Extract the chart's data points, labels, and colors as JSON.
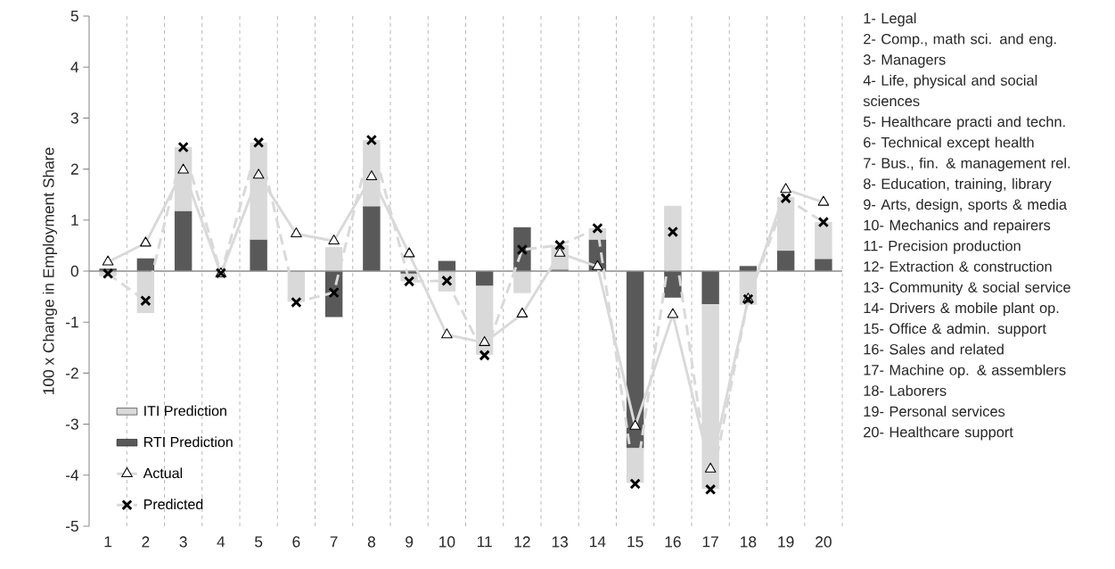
{
  "chart_data": {
    "type": "bar",
    "stacked": true,
    "ylabel": "100 x Change in Employment Share",
    "categories": [
      "1",
      "2",
      "3",
      "4",
      "5",
      "6",
      "7",
      "8",
      "9",
      "10",
      "11",
      "12",
      "13",
      "14",
      "15",
      "16",
      "17",
      "18",
      "19",
      "20"
    ],
    "series": [
      {
        "name": "RTI Prediction",
        "color": "#595959",
        "values": [
          0.05,
          0.25,
          1.18,
          0,
          0.62,
          0,
          -0.9,
          1.27,
          -0.05,
          0.2,
          -0.29,
          0.86,
          0.03,
          0.62,
          -3.47,
          -0.52,
          -0.65,
          0.1,
          0.4,
          0.24
        ]
      },
      {
        "name": "ITI Prediction",
        "color": "#d9d9d9",
        "values": [
          -0.1,
          -0.82,
          1.25,
          null,
          1.9,
          -0.6,
          0.47,
          1.3,
          -0.15,
          -0.4,
          -1.35,
          -0.43,
          0.48,
          0.22,
          -0.68,
          1.28,
          -3.62,
          -0.66,
          1.05,
          0.72
        ]
      },
      {
        "name": "Actual",
        "type": "line",
        "color": "#d9d9d9",
        "marker": "triangle",
        "line_style": "solid",
        "values": [
          0.18,
          0.55,
          1.98,
          -0.05,
          1.88,
          0.73,
          0.59,
          1.85,
          0.34,
          -1.25,
          -1.4,
          -0.84,
          0.35,
          0.09,
          -3.04,
          -0.85,
          -3.88,
          -0.55,
          1.6,
          1.35
        ]
      },
      {
        "name": "Predicted",
        "type": "line",
        "color": "#d9d9d9",
        "marker": "cross",
        "line_style": "dashed",
        "values": [
          -0.05,
          -0.58,
          2.43,
          -0.04,
          2.52,
          -0.61,
          -0.42,
          2.57,
          -0.2,
          -0.19,
          -1.65,
          0.42,
          0.51,
          0.84,
          -4.17,
          0.77,
          -4.28,
          -0.55,
          1.43,
          0.96
        ]
      }
    ],
    "ylim": [
      -5,
      5
    ],
    "yticks": [
      -5,
      -4,
      -3,
      -2,
      -1,
      0,
      1,
      2,
      3,
      4,
      5
    ],
    "grid": "x",
    "legend": "bottom left",
    "annotations": [
      "1- Legal",
      "2- Comp., math sci. and eng.",
      "3- Managers",
      "4- Life, physical and social sciences",
      "5- Healthcare practi and techn.",
      "6- Technical except health",
      "7- Bus., fin. & management rel.",
      "8- Education, training, library",
      "9- Arts, design, sports & media",
      "10- Mechanics and repairers",
      "11- Precision production",
      "12- Extraction & construction",
      "13- Community & social service",
      "14- Drivers & mobile plant op.",
      "15- Office & admin. support",
      "16- Sales and related",
      "17- Machine op. & assemblers",
      "18- Laborers",
      "19- Personal services",
      "20- Healthcare support"
    ]
  }
}
